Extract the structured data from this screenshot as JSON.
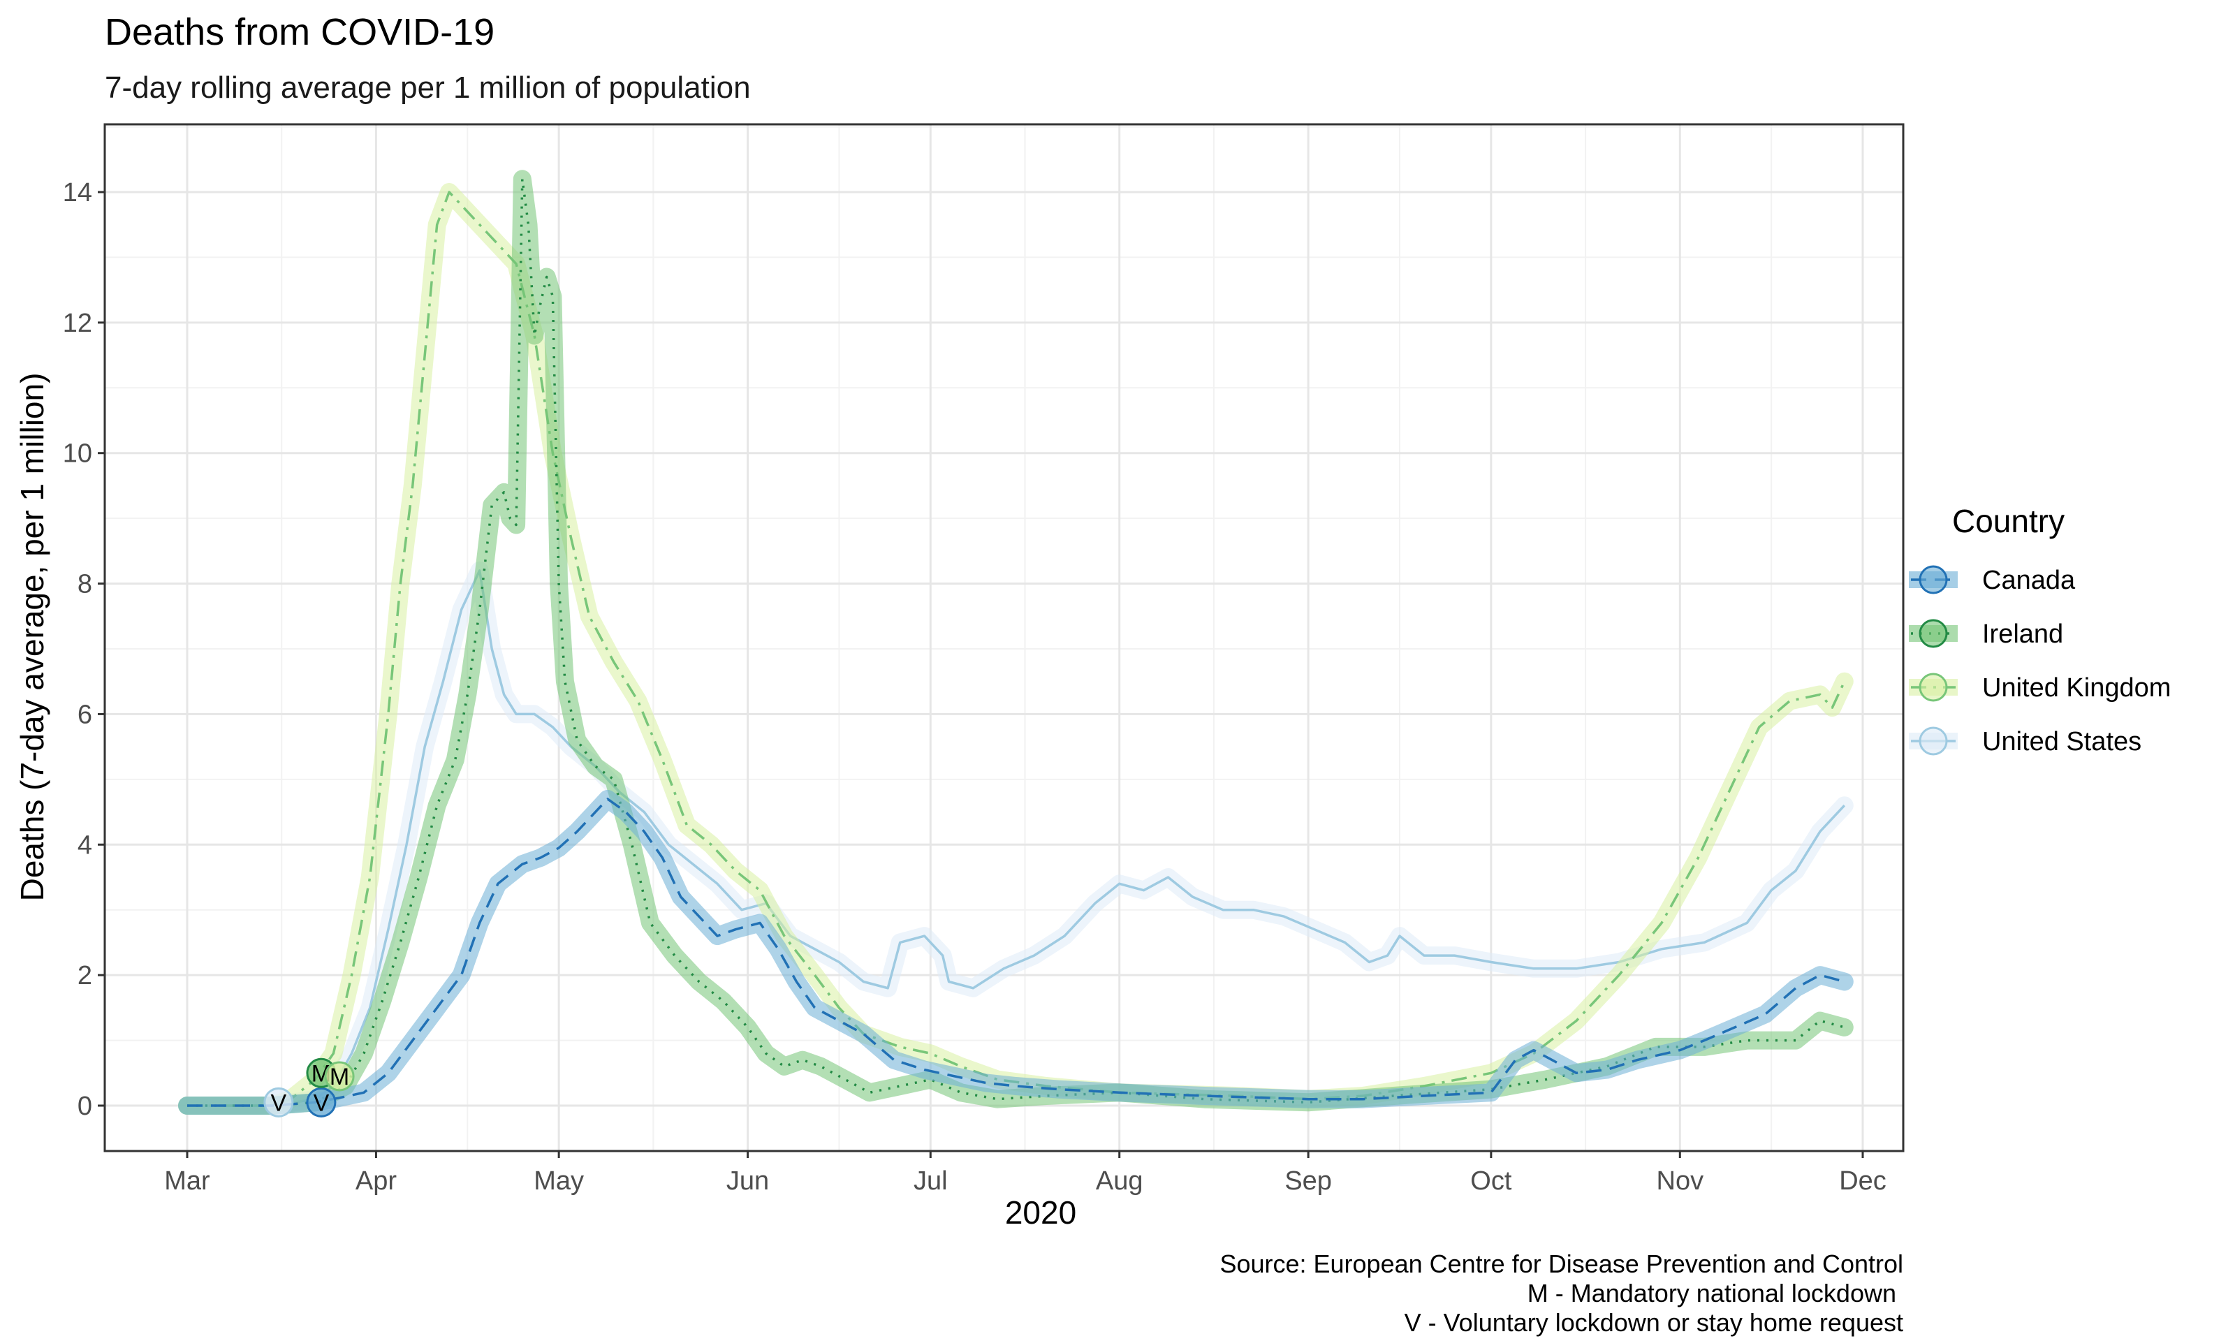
{
  "chart_data": {
    "type": "line",
    "title": "Deaths from COVID-19",
    "subtitle": "7-day rolling average per 1 million of population",
    "xlabel": "2020",
    "ylabel": "Deaths (7-day average, per 1 million)",
    "xlim": [
      "2020-03-01",
      "2020-12-01"
    ],
    "ylim": [
      -0.7,
      15
    ],
    "x_ticks": [
      "2020-03-01",
      "2020-04-01",
      "2020-05-01",
      "2020-06-01",
      "2020-07-01",
      "2020-08-01",
      "2020-09-01",
      "2020-10-01",
      "2020-11-01",
      "2020-12-01"
    ],
    "x_tick_labels": [
      "Mar",
      "Apr",
      "May",
      "Jun",
      "Jul",
      "Aug",
      "Sep",
      "Oct",
      "Nov",
      "Dec"
    ],
    "y_ticks": [
      0,
      2,
      4,
      6,
      8,
      10,
      12,
      14
    ],
    "y_tick_labels": [
      "0",
      "2",
      "4",
      "6",
      "8",
      "10",
      "12",
      "14"
    ],
    "grid": true,
    "legend_title": "Country",
    "legend_position": "right",
    "caption": [
      "Source: European Centre for Disease Prevention and Control",
      "M - Mandatory national lockdown ",
      "V - Voluntary lockdown or stay home request"
    ],
    "series": [
      {
        "name": "Canada",
        "color": "#2171b5",
        "halo_color": "#6baed6",
        "dash": "dashed",
        "points": [
          [
            "2020-03-01",
            0
          ],
          [
            "2020-03-15",
            0
          ],
          [
            "2020-03-22",
            0.05
          ],
          [
            "2020-03-26",
            0.12
          ],
          [
            "2020-03-30",
            0.2
          ],
          [
            "2020-04-03",
            0.5
          ],
          [
            "2020-04-07",
            1.0
          ],
          [
            "2020-04-11",
            1.5
          ],
          [
            "2020-04-15",
            2.0
          ],
          [
            "2020-04-18",
            2.8
          ],
          [
            "2020-04-21",
            3.4
          ],
          [
            "2020-04-25",
            3.7
          ],
          [
            "2020-04-28",
            3.8
          ],
          [
            "2020-05-01",
            3.95
          ],
          [
            "2020-05-04",
            4.2
          ],
          [
            "2020-05-07",
            4.5
          ],
          [
            "2020-05-09",
            4.7
          ],
          [
            "2020-05-12",
            4.5
          ],
          [
            "2020-05-15",
            4.2
          ],
          [
            "2020-05-18",
            3.8
          ],
          [
            "2020-05-21",
            3.2
          ],
          [
            "2020-05-24",
            2.9
          ],
          [
            "2020-05-27",
            2.6
          ],
          [
            "2020-05-30",
            2.7
          ],
          [
            "2020-06-03",
            2.8
          ],
          [
            "2020-06-06",
            2.4
          ],
          [
            "2020-06-09",
            1.9
          ],
          [
            "2020-06-12",
            1.5
          ],
          [
            "2020-06-16",
            1.3
          ],
          [
            "2020-06-20",
            1.1
          ],
          [
            "2020-06-25",
            0.7
          ],
          [
            "2020-06-30",
            0.55
          ],
          [
            "2020-07-05",
            0.45
          ],
          [
            "2020-07-10",
            0.35
          ],
          [
            "2020-07-15",
            0.3
          ],
          [
            "2020-07-22",
            0.25
          ],
          [
            "2020-08-01",
            0.2
          ],
          [
            "2020-08-15",
            0.15
          ],
          [
            "2020-09-01",
            0.1
          ],
          [
            "2020-09-10",
            0.1
          ],
          [
            "2020-09-20",
            0.15
          ],
          [
            "2020-10-01",
            0.2
          ],
          [
            "2020-10-05",
            0.7
          ],
          [
            "2020-10-08",
            0.85
          ],
          [
            "2020-10-11",
            0.7
          ],
          [
            "2020-10-15",
            0.5
          ],
          [
            "2020-10-20",
            0.55
          ],
          [
            "2020-10-25",
            0.7
          ],
          [
            "2020-11-01",
            0.85
          ],
          [
            "2020-11-05",
            1.0
          ],
          [
            "2020-11-10",
            1.2
          ],
          [
            "2020-11-15",
            1.4
          ],
          [
            "2020-11-20",
            1.8
          ],
          [
            "2020-11-24",
            2.0
          ],
          [
            "2020-11-28",
            1.9
          ]
        ]
      },
      {
        "name": "Ireland",
        "color": "#238b45",
        "halo_color": "#74c476",
        "dash": "dotted",
        "points": [
          [
            "2020-03-01",
            0
          ],
          [
            "2020-03-15",
            0
          ],
          [
            "2020-03-22",
            0.05
          ],
          [
            "2020-03-27",
            0.3
          ],
          [
            "2020-03-30",
            0.8
          ],
          [
            "2020-04-02",
            1.6
          ],
          [
            "2020-04-05",
            2.5
          ],
          [
            "2020-04-08",
            3.5
          ],
          [
            "2020-04-11",
            4.6
          ],
          [
            "2020-04-14",
            5.3
          ],
          [
            "2020-04-16",
            6.3
          ],
          [
            "2020-04-18",
            7.6
          ],
          [
            "2020-04-20",
            9.2
          ],
          [
            "2020-04-22",
            9.4
          ],
          [
            "2020-04-23",
            9.0
          ],
          [
            "2020-04-24",
            8.9
          ],
          [
            "2020-04-25",
            14.2
          ],
          [
            "2020-04-26",
            13.5
          ],
          [
            "2020-04-27",
            11.8
          ],
          [
            "2020-04-28",
            12.3
          ],
          [
            "2020-04-29",
            12.7
          ],
          [
            "2020-04-30",
            12.4
          ],
          [
            "2020-05-01",
            8.0
          ],
          [
            "2020-05-02",
            6.5
          ],
          [
            "2020-05-04",
            5.6
          ],
          [
            "2020-05-07",
            5.2
          ],
          [
            "2020-05-10",
            5.0
          ],
          [
            "2020-05-13",
            4.0
          ],
          [
            "2020-05-16",
            2.8
          ],
          [
            "2020-05-20",
            2.3
          ],
          [
            "2020-05-24",
            1.9
          ],
          [
            "2020-05-28",
            1.6
          ],
          [
            "2020-06-01",
            1.2
          ],
          [
            "2020-06-04",
            0.8
          ],
          [
            "2020-06-07",
            0.6
          ],
          [
            "2020-06-10",
            0.7
          ],
          [
            "2020-06-13",
            0.6
          ],
          [
            "2020-06-17",
            0.4
          ],
          [
            "2020-06-21",
            0.2
          ],
          [
            "2020-06-26",
            0.3
          ],
          [
            "2020-07-01",
            0.4
          ],
          [
            "2020-07-06",
            0.2
          ],
          [
            "2020-07-12",
            0.1
          ],
          [
            "2020-07-20",
            0.15
          ],
          [
            "2020-08-01",
            0.2
          ],
          [
            "2020-08-15",
            0.1
          ],
          [
            "2020-09-01",
            0.05
          ],
          [
            "2020-09-15",
            0.15
          ],
          [
            "2020-10-01",
            0.25
          ],
          [
            "2020-10-10",
            0.4
          ],
          [
            "2020-10-20",
            0.6
          ],
          [
            "2020-10-28",
            0.9
          ],
          [
            "2020-11-05",
            0.9
          ],
          [
            "2020-11-12",
            1.0
          ],
          [
            "2020-11-20",
            1.0
          ],
          [
            "2020-11-24",
            1.3
          ],
          [
            "2020-11-28",
            1.2
          ]
        ]
      },
      {
        "name": "United Kingdom",
        "color": "#78c679",
        "halo_color": "#d9f0a3",
        "dash": "dashdot",
        "points": [
          [
            "2020-03-01",
            0
          ],
          [
            "2020-03-15",
            0
          ],
          [
            "2020-03-18",
            0.1
          ],
          [
            "2020-03-22",
            0.4
          ],
          [
            "2020-03-25",
            0.8
          ],
          [
            "2020-03-28",
            2.0
          ],
          [
            "2020-03-31",
            3.5
          ],
          [
            "2020-04-03",
            6.0
          ],
          [
            "2020-04-05",
            8.0
          ],
          [
            "2020-04-07",
            9.5
          ],
          [
            "2020-04-09",
            11.5
          ],
          [
            "2020-04-11",
            13.5
          ],
          [
            "2020-04-13",
            14.0
          ],
          [
            "2020-04-15",
            13.8
          ],
          [
            "2020-04-18",
            13.5
          ],
          [
            "2020-04-21",
            13.2
          ],
          [
            "2020-04-24",
            12.9
          ],
          [
            "2020-04-27",
            11.8
          ],
          [
            "2020-04-30",
            10.0
          ],
          [
            "2020-05-03",
            8.7
          ],
          [
            "2020-05-06",
            7.5
          ],
          [
            "2020-05-10",
            6.8
          ],
          [
            "2020-05-14",
            6.2
          ],
          [
            "2020-05-18",
            5.3
          ],
          [
            "2020-05-22",
            4.3
          ],
          [
            "2020-05-26",
            4.0
          ],
          [
            "2020-05-30",
            3.6
          ],
          [
            "2020-06-03",
            3.3
          ],
          [
            "2020-06-07",
            2.6
          ],
          [
            "2020-06-12",
            2.0
          ],
          [
            "2020-06-16",
            1.5
          ],
          [
            "2020-06-20",
            1.1
          ],
          [
            "2020-06-26",
            0.9
          ],
          [
            "2020-07-01",
            0.8
          ],
          [
            "2020-07-06",
            0.6
          ],
          [
            "2020-07-12",
            0.4
          ],
          [
            "2020-07-20",
            0.3
          ],
          [
            "2020-08-01",
            0.2
          ],
          [
            "2020-08-20",
            0.15
          ],
          [
            "2020-09-01",
            0.1
          ],
          [
            "2020-09-10",
            0.15
          ],
          [
            "2020-09-20",
            0.3
          ],
          [
            "2020-10-01",
            0.5
          ],
          [
            "2020-10-08",
            0.8
          ],
          [
            "2020-10-15",
            1.3
          ],
          [
            "2020-10-22",
            2.0
          ],
          [
            "2020-10-29",
            2.8
          ],
          [
            "2020-11-04",
            3.8
          ],
          [
            "2020-11-09",
            4.8
          ],
          [
            "2020-11-14",
            5.8
          ],
          [
            "2020-11-19",
            6.2
          ],
          [
            "2020-11-24",
            6.3
          ],
          [
            "2020-11-26",
            6.1
          ],
          [
            "2020-11-28",
            6.5
          ]
        ]
      },
      {
        "name": "United States",
        "color": "#9ecae1",
        "halo_color": "#deebf7",
        "dash": "solid",
        "points": [
          [
            "2020-03-01",
            0
          ],
          [
            "2020-03-15",
            0
          ],
          [
            "2020-03-22",
            0.1
          ],
          [
            "2020-03-25",
            0.3
          ],
          [
            "2020-03-28",
            0.8
          ],
          [
            "2020-03-31",
            1.5
          ],
          [
            "2020-04-03",
            2.7
          ],
          [
            "2020-04-06",
            4.0
          ],
          [
            "2020-04-09",
            5.5
          ],
          [
            "2020-04-12",
            6.5
          ],
          [
            "2020-04-15",
            7.6
          ],
          [
            "2020-04-18",
            8.2
          ],
          [
            "2020-04-20",
            7.0
          ],
          [
            "2020-04-22",
            6.3
          ],
          [
            "2020-04-24",
            6.0
          ],
          [
            "2020-04-27",
            6.0
          ],
          [
            "2020-04-30",
            5.8
          ],
          [
            "2020-05-03",
            5.5
          ],
          [
            "2020-05-07",
            5.2
          ],
          [
            "2020-05-11",
            4.8
          ],
          [
            "2020-05-15",
            4.5
          ],
          [
            "2020-05-19",
            4.0
          ],
          [
            "2020-05-23",
            3.7
          ],
          [
            "2020-05-27",
            3.4
          ],
          [
            "2020-05-31",
            3.0
          ],
          [
            "2020-06-04",
            3.1
          ],
          [
            "2020-06-08",
            2.6
          ],
          [
            "2020-06-12",
            2.4
          ],
          [
            "2020-06-16",
            2.2
          ],
          [
            "2020-06-20",
            1.9
          ],
          [
            "2020-06-24",
            1.8
          ],
          [
            "2020-06-26",
            2.5
          ],
          [
            "2020-06-30",
            2.6
          ],
          [
            "2020-07-03",
            2.3
          ],
          [
            "2020-07-04",
            1.9
          ],
          [
            "2020-07-08",
            1.8
          ],
          [
            "2020-07-13",
            2.1
          ],
          [
            "2020-07-18",
            2.3
          ],
          [
            "2020-07-23",
            2.6
          ],
          [
            "2020-07-28",
            3.1
          ],
          [
            "2020-08-01",
            3.4
          ],
          [
            "2020-08-05",
            3.3
          ],
          [
            "2020-08-09",
            3.5
          ],
          [
            "2020-08-13",
            3.2
          ],
          [
            "2020-08-18",
            3.0
          ],
          [
            "2020-08-23",
            3.0
          ],
          [
            "2020-08-28",
            2.9
          ],
          [
            "2020-09-02",
            2.7
          ],
          [
            "2020-09-07",
            2.5
          ],
          [
            "2020-09-11",
            2.2
          ],
          [
            "2020-09-14",
            2.3
          ],
          [
            "2020-09-16",
            2.6
          ],
          [
            "2020-09-20",
            2.3
          ],
          [
            "2020-09-25",
            2.3
          ],
          [
            "2020-10-01",
            2.2
          ],
          [
            "2020-10-08",
            2.1
          ],
          [
            "2020-10-15",
            2.1
          ],
          [
            "2020-10-22",
            2.2
          ],
          [
            "2020-10-29",
            2.4
          ],
          [
            "2020-11-05",
            2.5
          ],
          [
            "2020-11-12",
            2.8
          ],
          [
            "2020-11-16",
            3.3
          ],
          [
            "2020-11-20",
            3.6
          ],
          [
            "2020-11-24",
            4.2
          ],
          [
            "2020-11-28",
            4.6
          ]
        ]
      }
    ],
    "annotations": [
      {
        "label": "V",
        "series": "United States",
        "date": "2020-03-16",
        "y": 0.05
      },
      {
        "label": "V",
        "series": "Canada",
        "date": "2020-03-23",
        "y": 0.05
      },
      {
        "label": "M",
        "series": "Ireland",
        "date": "2020-03-23",
        "y": 0.5
      },
      {
        "label": "M",
        "series": "United Kingdom",
        "date": "2020-03-26",
        "y": 0.45
      }
    ]
  }
}
